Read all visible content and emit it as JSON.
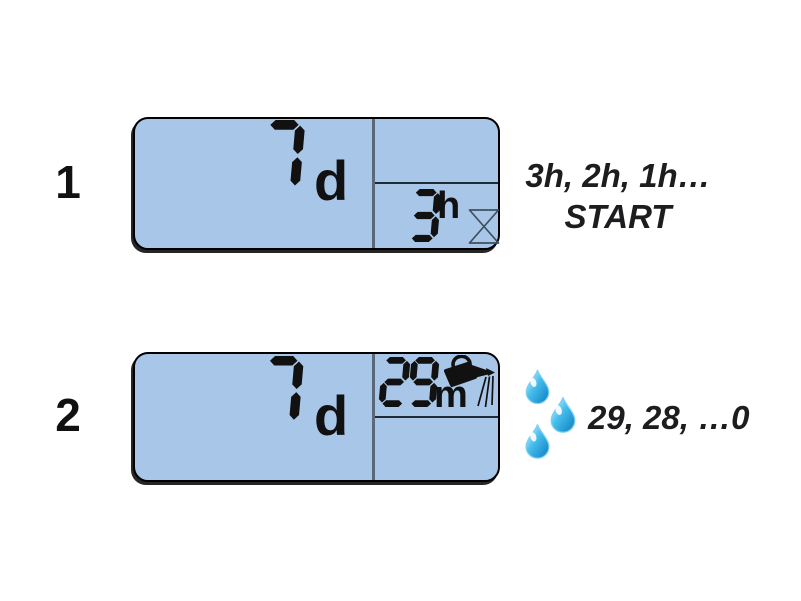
{
  "colors": {
    "lcd_bg": "#a8c6e8",
    "lcd_border": "#000000",
    "divider_vertical": "#5a6878",
    "divider_horizontal": "#1e2a38",
    "segment": "#111111",
    "caption_text": "#1d1d1f",
    "drop_light": "#e9f8fe",
    "drop_mid": "#45bdec",
    "drop_dark": "#0c7dc0"
  },
  "steps": [
    {
      "label": "1",
      "display": {
        "main_value": "7",
        "main_unit": "d",
        "sub_value": "3",
        "sub_unit": "h",
        "icon": "hourglass"
      },
      "caption_line1": "3h, 2h, 1h…",
      "caption_line2": "START"
    },
    {
      "label": "2",
      "display": {
        "main_value": "7",
        "main_unit": "d",
        "sub_value": "29",
        "sub_unit": "m",
        "icon": "watering-can"
      },
      "drops_icon": "water-drops",
      "caption": "29, 28, …0"
    }
  ]
}
